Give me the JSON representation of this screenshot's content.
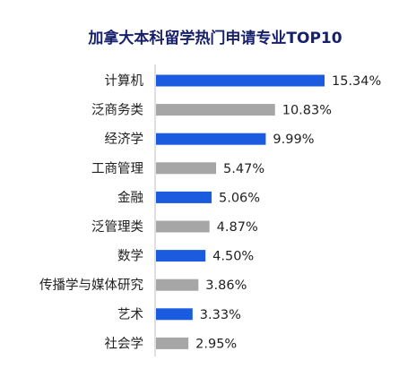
{
  "chart_data": {
    "type": "bar",
    "orientation": "horizontal",
    "title": "加拿大本科留学热门申请专业TOP10",
    "categories": [
      "计算机",
      "泛商务类",
      "经济学",
      "工商管理",
      "金融",
      "泛管理类",
      "数学",
      "传播学与媒体研究",
      "艺术",
      "社会学"
    ],
    "values": [
      15.34,
      10.83,
      9.99,
      5.47,
      5.06,
      4.87,
      4.5,
      3.86,
      3.33,
      2.95
    ],
    "value_labels": [
      "15.34%",
      "10.83%",
      "9.99%",
      "5.47%",
      "5.06%",
      "4.87%",
      "4.50%",
      "3.86%",
      "3.33%",
      "2.95%"
    ],
    "bar_colors": [
      "#1a5be0",
      "#a6a6a6",
      "#1a5be0",
      "#a6a6a6",
      "#1a5be0",
      "#a6a6a6",
      "#1a5be0",
      "#a6a6a6",
      "#1a5be0",
      "#a6a6a6"
    ],
    "axis_line_color": "#bfbfbf",
    "xlabel": "",
    "ylabel": "",
    "xlim": [
      0,
      15.34
    ],
    "grid": false,
    "legend": "none"
  }
}
